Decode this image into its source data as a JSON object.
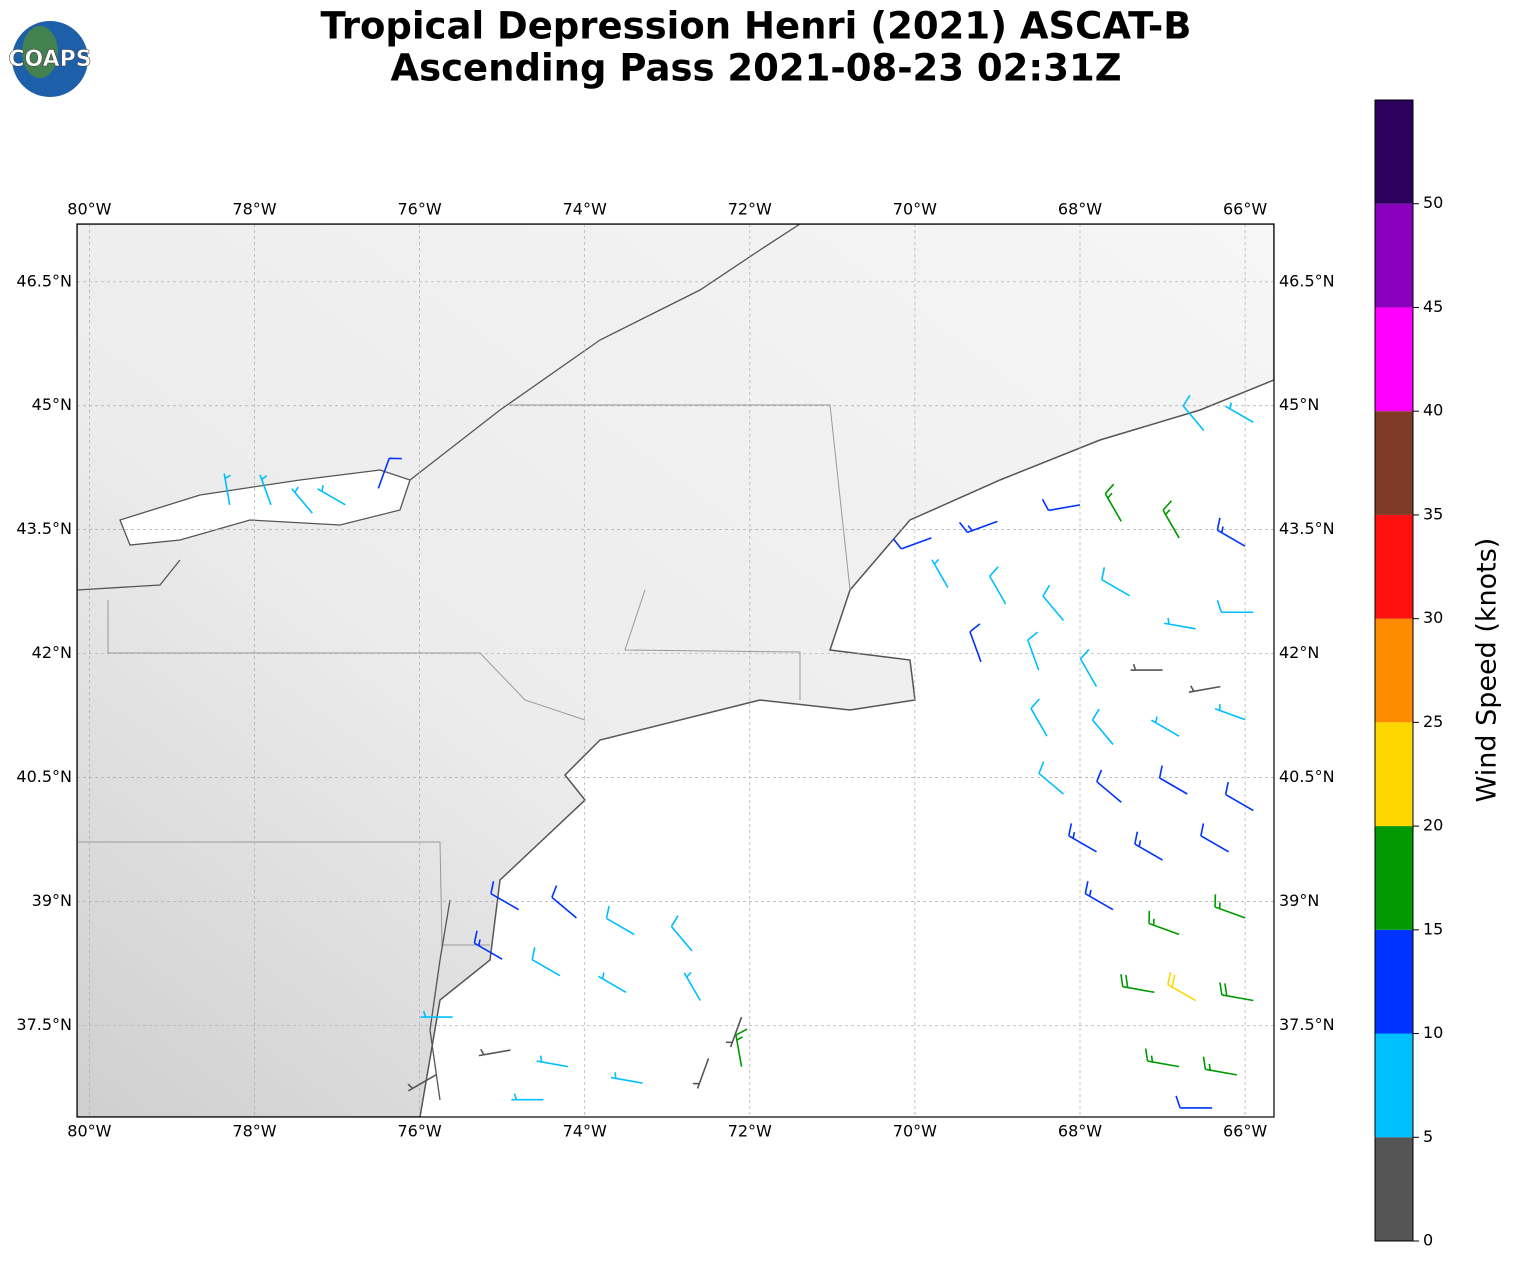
{
  "header": {
    "title": [
      "Tropical Depression Henri (2021) ASCAT-B",
      "Ascending Pass 2021-08-23 02:31Z"
    ],
    "logo": "COAPS"
  },
  "map": {
    "xlim": [
      -80.15,
      -65.65
    ],
    "ylim": [
      36.39,
      47.2
    ],
    "lon_ticks": [
      {
        "value": -80,
        "label": "80°W"
      },
      {
        "value": -78,
        "label": "78°W"
      },
      {
        "value": -76,
        "label": "76°W"
      },
      {
        "value": -74,
        "label": "74°W"
      },
      {
        "value": -72,
        "label": "72°W"
      },
      {
        "value": -70,
        "label": "70°W"
      },
      {
        "value": -68,
        "label": "68°W"
      },
      {
        "value": -66,
        "label": "66°W"
      }
    ],
    "lat_ticks": [
      {
        "value": 46.5,
        "label": "46.5°N"
      },
      {
        "value": 45,
        "label": "45°N"
      },
      {
        "value": 43.5,
        "label": "43.5°N"
      },
      {
        "value": 42,
        "label": "42°N"
      },
      {
        "value": 40.5,
        "label": "40.5°N"
      },
      {
        "value": 39,
        "label": "39°N"
      },
      {
        "value": 37.5,
        "label": "37.5°N"
      }
    ],
    "barbs": [
      [
        -69.8,
        43.4,
        12,
        250
      ],
      [
        -69,
        43.6,
        13,
        250
      ],
      [
        -68,
        43.8,
        12,
        260
      ],
      [
        -67.5,
        43.6,
        17,
        330
      ],
      [
        -66.8,
        43.4,
        17,
        330
      ],
      [
        -66,
        43.3,
        13,
        300
      ],
      [
        -66.5,
        44.7,
        8,
        320
      ],
      [
        -65.9,
        44.8,
        7,
        300
      ],
      [
        -69.6,
        42.8,
        7,
        330
      ],
      [
        -68.9,
        42.6,
        8,
        330
      ],
      [
        -68.2,
        42.4,
        8,
        320
      ],
      [
        -67.4,
        42.7,
        8,
        300
      ],
      [
        -66.6,
        42.3,
        7,
        280
      ],
      [
        -65.9,
        42.5,
        8,
        270
      ],
      [
        -69.2,
        41.9,
        11,
        340
      ],
      [
        -68.5,
        41.8,
        8,
        340
      ],
      [
        -67.8,
        41.6,
        8,
        330
      ],
      [
        -67,
        41.8,
        3,
        270
      ],
      [
        -66.3,
        41.6,
        3,
        260
      ],
      [
        -68.4,
        41,
        8,
        330
      ],
      [
        -67.6,
        40.9,
        8,
        320
      ],
      [
        -66.8,
        41,
        7,
        300
      ],
      [
        -66,
        41.2,
        6,
        290
      ],
      [
        -68.2,
        40.3,
        8,
        310
      ],
      [
        -67.5,
        40.2,
        12,
        310
      ],
      [
        -66.7,
        40.3,
        12,
        300
      ],
      [
        -65.9,
        40.1,
        12,
        300
      ],
      [
        -67.8,
        39.6,
        13,
        300
      ],
      [
        -67,
        39.5,
        13,
        300
      ],
      [
        -66.2,
        39.6,
        12,
        300
      ],
      [
        -67.6,
        38.9,
        13,
        300
      ],
      [
        -66.8,
        38.6,
        17,
        290
      ],
      [
        -66,
        38.8,
        17,
        290
      ],
      [
        -67.1,
        37.9,
        18,
        280
      ],
      [
        -66.6,
        37.8,
        22,
        300
      ],
      [
        -65.9,
        37.8,
        18,
        280
      ],
      [
        -66.8,
        37,
        17,
        280
      ],
      [
        -66.1,
        36.9,
        16,
        280
      ],
      [
        -66.4,
        36.5,
        12,
        270
      ],
      [
        -74.8,
        38.9,
        12,
        300
      ],
      [
        -74.1,
        38.8,
        12,
        310
      ],
      [
        -73.4,
        38.6,
        8,
        300
      ],
      [
        -72.7,
        38.4,
        8,
        320
      ],
      [
        -75,
        38.3,
        13,
        300
      ],
      [
        -74.3,
        38.1,
        8,
        300
      ],
      [
        -73.5,
        37.9,
        7,
        300
      ],
      [
        -72.6,
        37.8,
        7,
        330
      ],
      [
        -72.1,
        37.6,
        4,
        200
      ],
      [
        -75.6,
        37.6,
        6,
        270
      ],
      [
        -74.9,
        37.2,
        4,
        260
      ],
      [
        -74.2,
        37,
        7,
        280
      ],
      [
        -73.3,
        36.8,
        6,
        280
      ],
      [
        -72.5,
        37.1,
        3,
        200
      ],
      [
        -72.1,
        37,
        16,
        350
      ],
      [
        -75.8,
        36.9,
        3,
        240
      ],
      [
        -74.5,
        36.6,
        7,
        270
      ],
      [
        -78.3,
        43.8,
        7,
        350
      ],
      [
        -77.8,
        43.8,
        7,
        340
      ],
      [
        -77.3,
        43.7,
        7,
        320
      ],
      [
        -76.9,
        43.8,
        6,
        300
      ],
      [
        -76.5,
        44,
        11,
        20
      ]
    ]
  },
  "colorbar": {
    "label": "Wind Speed (knots)",
    "lim": [
      0,
      55
    ],
    "ticks": [
      0,
      5,
      10,
      15,
      20,
      25,
      30,
      35,
      40,
      45,
      50
    ],
    "colors": [
      "#555555",
      "#00bfff",
      "#0033ff",
      "#009900",
      "#ffd700",
      "#ff8c00",
      "#ff1010",
      "#7f3a28",
      "#ff00ff",
      "#8800bb",
      "#2e005e"
    ]
  }
}
